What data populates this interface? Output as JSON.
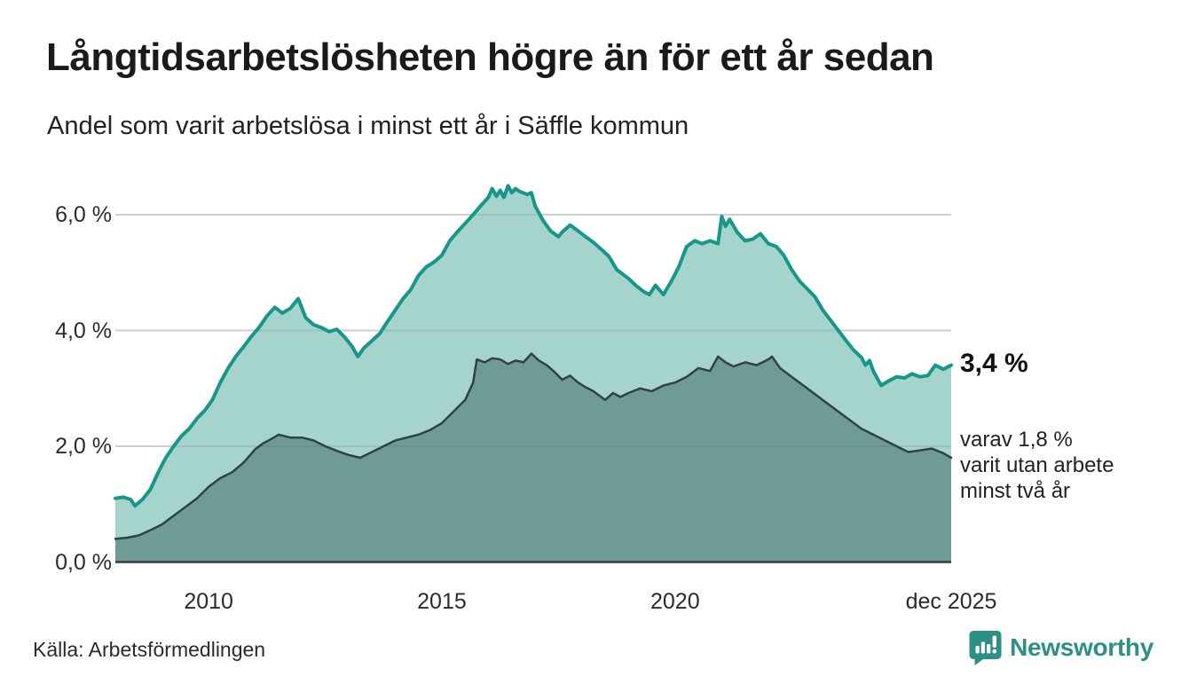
{
  "header": {
    "title": "Långtidsarbetslösheten högre än för ett år sedan",
    "subtitle": "Andel som varit arbetslösa i minst ett år i Säffle kommun"
  },
  "chart_data": {
    "type": "area",
    "title": "Långtidsarbetslösheten högre än för ett år sedan",
    "subtitle": "Andel som varit arbetslösa i minst ett år i Säffle kommun",
    "unit": "%",
    "grid": true,
    "x_axis": {
      "range": [
        2008.0,
        2025.92
      ],
      "ticks": [
        {
          "x": 2010,
          "label": "2010"
        },
        {
          "x": 2015,
          "label": "2015"
        },
        {
          "x": 2020,
          "label": "2020"
        },
        {
          "x": 2025.92,
          "label": "dec 2025"
        }
      ]
    },
    "y_axis": {
      "range": [
        0,
        6.8
      ],
      "ticks": [
        {
          "v": 6,
          "label": "6,0 %"
        },
        {
          "v": 4,
          "label": "4,0 %"
        },
        {
          "v": 2,
          "label": "2,0 %"
        },
        {
          "v": 0,
          "label": "0,0 %"
        }
      ]
    },
    "series": [
      {
        "name": "Andel som varit arbetslösa minst ett år",
        "end_label": "3,4 %",
        "end_value": 3.4,
        "line_color": "#18968a",
        "fill_color": "#a4d4cc",
        "points": [
          [
            2008.0,
            1.1
          ],
          [
            2008.17,
            1.12
          ],
          [
            2008.33,
            1.08
          ],
          [
            2008.42,
            0.97
          ],
          [
            2008.58,
            1.08
          ],
          [
            2008.75,
            1.25
          ],
          [
            2008.92,
            1.55
          ],
          [
            2009.08,
            1.8
          ],
          [
            2009.25,
            2.0
          ],
          [
            2009.42,
            2.18
          ],
          [
            2009.58,
            2.3
          ],
          [
            2009.75,
            2.48
          ],
          [
            2009.92,
            2.62
          ],
          [
            2010.08,
            2.8
          ],
          [
            2010.25,
            3.1
          ],
          [
            2010.42,
            3.35
          ],
          [
            2010.58,
            3.55
          ],
          [
            2010.75,
            3.72
          ],
          [
            2010.92,
            3.9
          ],
          [
            2011.08,
            4.05
          ],
          [
            2011.25,
            4.25
          ],
          [
            2011.42,
            4.4
          ],
          [
            2011.58,
            4.3
          ],
          [
            2011.75,
            4.38
          ],
          [
            2011.92,
            4.55
          ],
          [
            2012.08,
            4.22
          ],
          [
            2012.25,
            4.1
          ],
          [
            2012.42,
            4.05
          ],
          [
            2012.58,
            3.98
          ],
          [
            2012.75,
            4.02
          ],
          [
            2012.92,
            3.88
          ],
          [
            2013.08,
            3.72
          ],
          [
            2013.2,
            3.55
          ],
          [
            2013.33,
            3.7
          ],
          [
            2013.5,
            3.82
          ],
          [
            2013.67,
            3.95
          ],
          [
            2013.83,
            4.15
          ],
          [
            2014.0,
            4.35
          ],
          [
            2014.17,
            4.55
          ],
          [
            2014.33,
            4.7
          ],
          [
            2014.5,
            4.95
          ],
          [
            2014.67,
            5.1
          ],
          [
            2014.83,
            5.18
          ],
          [
            2015.0,
            5.3
          ],
          [
            2015.17,
            5.55
          ],
          [
            2015.33,
            5.7
          ],
          [
            2015.5,
            5.85
          ],
          [
            2015.67,
            6.0
          ],
          [
            2015.83,
            6.15
          ],
          [
            2016.0,
            6.3
          ],
          [
            2016.08,
            6.45
          ],
          [
            2016.17,
            6.32
          ],
          [
            2016.25,
            6.42
          ],
          [
            2016.33,
            6.3
          ],
          [
            2016.42,
            6.5
          ],
          [
            2016.5,
            6.38
          ],
          [
            2016.58,
            6.45
          ],
          [
            2016.67,
            6.4
          ],
          [
            2016.83,
            6.35
          ],
          [
            2016.92,
            6.38
          ],
          [
            2017.0,
            6.15
          ],
          [
            2017.17,
            5.9
          ],
          [
            2017.33,
            5.72
          ],
          [
            2017.5,
            5.62
          ],
          [
            2017.58,
            5.7
          ],
          [
            2017.75,
            5.82
          ],
          [
            2017.92,
            5.72
          ],
          [
            2018.08,
            5.62
          ],
          [
            2018.25,
            5.52
          ],
          [
            2018.42,
            5.4
          ],
          [
            2018.58,
            5.28
          ],
          [
            2018.75,
            5.05
          ],
          [
            2019.0,
            4.9
          ],
          [
            2019.17,
            4.77
          ],
          [
            2019.33,
            4.67
          ],
          [
            2019.45,
            4.62
          ],
          [
            2019.58,
            4.78
          ],
          [
            2019.75,
            4.62
          ],
          [
            2019.92,
            4.85
          ],
          [
            2020.08,
            5.1
          ],
          [
            2020.25,
            5.45
          ],
          [
            2020.42,
            5.55
          ],
          [
            2020.58,
            5.5
          ],
          [
            2020.75,
            5.55
          ],
          [
            2020.92,
            5.5
          ],
          [
            2021.0,
            5.97
          ],
          [
            2021.08,
            5.8
          ],
          [
            2021.17,
            5.92
          ],
          [
            2021.33,
            5.7
          ],
          [
            2021.5,
            5.55
          ],
          [
            2021.67,
            5.58
          ],
          [
            2021.83,
            5.67
          ],
          [
            2022.0,
            5.5
          ],
          [
            2022.17,
            5.45
          ],
          [
            2022.33,
            5.3
          ],
          [
            2022.5,
            5.05
          ],
          [
            2022.67,
            4.85
          ],
          [
            2022.83,
            4.72
          ],
          [
            2023.0,
            4.58
          ],
          [
            2023.17,
            4.35
          ],
          [
            2023.33,
            4.18
          ],
          [
            2023.5,
            4.0
          ],
          [
            2023.67,
            3.82
          ],
          [
            2023.83,
            3.66
          ],
          [
            2024.0,
            3.53
          ],
          [
            2024.08,
            3.4
          ],
          [
            2024.17,
            3.48
          ],
          [
            2024.25,
            3.3
          ],
          [
            2024.42,
            3.05
          ],
          [
            2024.58,
            3.13
          ],
          [
            2024.75,
            3.2
          ],
          [
            2024.92,
            3.18
          ],
          [
            2025.08,
            3.25
          ],
          [
            2025.25,
            3.2
          ],
          [
            2025.42,
            3.22
          ],
          [
            2025.58,
            3.4
          ],
          [
            2025.75,
            3.33
          ],
          [
            2025.92,
            3.4
          ]
        ]
      },
      {
        "name": "Andel som varit utan arbete minst två år",
        "end_label": "varav 1,8 %\nvarit utan arbete\nminst två år",
        "end_value": 1.8,
        "line_color": "#31423f",
        "fill_color": "#6f9b97",
        "points": [
          [
            2008.0,
            0.4
          ],
          [
            2008.25,
            0.42
          ],
          [
            2008.5,
            0.46
          ],
          [
            2008.75,
            0.55
          ],
          [
            2009.0,
            0.65
          ],
          [
            2009.25,
            0.8
          ],
          [
            2009.5,
            0.95
          ],
          [
            2009.75,
            1.1
          ],
          [
            2010.0,
            1.3
          ],
          [
            2010.25,
            1.45
          ],
          [
            2010.5,
            1.55
          ],
          [
            2010.75,
            1.72
          ],
          [
            2011.0,
            1.95
          ],
          [
            2011.17,
            2.05
          ],
          [
            2011.33,
            2.12
          ],
          [
            2011.5,
            2.2
          ],
          [
            2011.75,
            2.15
          ],
          [
            2012.0,
            2.15
          ],
          [
            2012.25,
            2.1
          ],
          [
            2012.5,
            2.0
          ],
          [
            2012.75,
            1.92
          ],
          [
            2013.0,
            1.85
          ],
          [
            2013.25,
            1.8
          ],
          [
            2013.5,
            1.9
          ],
          [
            2013.75,
            2.0
          ],
          [
            2014.0,
            2.1
          ],
          [
            2014.25,
            2.15
          ],
          [
            2014.5,
            2.2
          ],
          [
            2014.75,
            2.28
          ],
          [
            2015.0,
            2.4
          ],
          [
            2015.25,
            2.6
          ],
          [
            2015.5,
            2.8
          ],
          [
            2015.67,
            3.1
          ],
          [
            2015.75,
            3.5
          ],
          [
            2015.92,
            3.45
          ],
          [
            2016.08,
            3.52
          ],
          [
            2016.25,
            3.5
          ],
          [
            2016.42,
            3.42
          ],
          [
            2016.58,
            3.48
          ],
          [
            2016.75,
            3.45
          ],
          [
            2016.92,
            3.6
          ],
          [
            2017.08,
            3.48
          ],
          [
            2017.25,
            3.4
          ],
          [
            2017.42,
            3.28
          ],
          [
            2017.58,
            3.15
          ],
          [
            2017.75,
            3.22
          ],
          [
            2017.92,
            3.1
          ],
          [
            2018.08,
            3.02
          ],
          [
            2018.25,
            2.95
          ],
          [
            2018.5,
            2.8
          ],
          [
            2018.67,
            2.92
          ],
          [
            2018.83,
            2.85
          ],
          [
            2019.0,
            2.92
          ],
          [
            2019.25,
            3.0
          ],
          [
            2019.5,
            2.95
          ],
          [
            2019.75,
            3.05
          ],
          [
            2020.0,
            3.1
          ],
          [
            2020.25,
            3.2
          ],
          [
            2020.5,
            3.35
          ],
          [
            2020.75,
            3.3
          ],
          [
            2020.92,
            3.55
          ],
          [
            2021.08,
            3.45
          ],
          [
            2021.25,
            3.38
          ],
          [
            2021.5,
            3.45
          ],
          [
            2021.75,
            3.4
          ],
          [
            2022.0,
            3.5
          ],
          [
            2022.08,
            3.55
          ],
          [
            2022.25,
            3.35
          ],
          [
            2022.5,
            3.2
          ],
          [
            2022.75,
            3.05
          ],
          [
            2023.0,
            2.9
          ],
          [
            2023.25,
            2.75
          ],
          [
            2023.5,
            2.6
          ],
          [
            2023.75,
            2.45
          ],
          [
            2024.0,
            2.3
          ],
          [
            2024.25,
            2.2
          ],
          [
            2024.5,
            2.1
          ],
          [
            2024.75,
            2.0
          ],
          [
            2025.0,
            1.9
          ],
          [
            2025.25,
            1.93
          ],
          [
            2025.5,
            1.96
          ],
          [
            2025.75,
            1.88
          ],
          [
            2025.92,
            1.8
          ]
        ]
      }
    ],
    "legend_position": "none"
  },
  "annotations": {
    "end_value_main": "3,4 %",
    "end_note": "varav 1,8 %\nvarit utan arbete\nminst två år"
  },
  "footer": {
    "source": "Källa: Arbetsförmedlingen",
    "brand": "Newsworthy"
  },
  "colors": {
    "accent_teal": "#18968a",
    "fill_light": "#a4d4cc",
    "fill_dark": "#6f9b97",
    "line_dark": "#31423f",
    "grid": "#e2e2e2",
    "baseline": "#3a3a3a",
    "title_text": "#1a1a1a",
    "body_text": "#222222",
    "brand_teal": "#2d9087"
  }
}
